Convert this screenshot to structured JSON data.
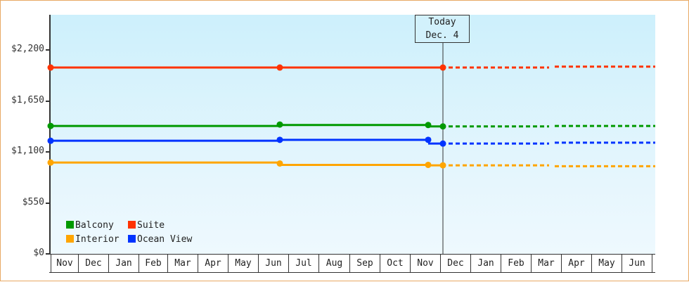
{
  "chart_data": {
    "type": "line",
    "title": "",
    "xlabel": "",
    "ylabel": "",
    "ylim": [
      0,
      2475
    ],
    "y_ticks": [
      "$0",
      "$550",
      "$1,100",
      "$1,650",
      "$2,200"
    ],
    "y_tick_values": [
      0,
      550,
      1100,
      1650,
      2200
    ],
    "categories": [
      "Nov",
      "Dec",
      "Jan",
      "Feb",
      "Mar",
      "Apr",
      "May",
      "Jun",
      "Jul",
      "Aug",
      "Sep",
      "Oct",
      "Nov",
      "Dec",
      "Jan",
      "Feb",
      "Mar",
      "Apr",
      "May",
      "Jun"
    ],
    "grid": false,
    "legend_position": "lower-left inside plot",
    "annotation": {
      "label_line1": "Today",
      "label_line2": "Dec. 4"
    },
    "series": [
      {
        "name": "Suite",
        "color": "#ff3300",
        "historical": [
          {
            "x": "Nov (start)",
            "y": 2010
          },
          {
            "x": "Jun",
            "y": 2010
          },
          {
            "x": "Dec 4",
            "y": 2010
          }
        ],
        "forecast": [
          {
            "x": "Dec 4",
            "y": 2010
          },
          {
            "x": "Mar",
            "y": 2010
          },
          {
            "x": "Jun",
            "y": 2020
          }
        ]
      },
      {
        "name": "Balcony",
        "color": "#009900",
        "historical": [
          {
            "x": "Nov (start)",
            "y": 1380
          },
          {
            "x": "Jun",
            "y": 1395
          },
          {
            "x": "Nov (end)",
            "y": 1390
          },
          {
            "x": "Dec 4",
            "y": 1375
          }
        ],
        "forecast": [
          {
            "x": "Dec 4",
            "y": 1375
          },
          {
            "x": "Mar",
            "y": 1375
          },
          {
            "x": "Jun",
            "y": 1380
          }
        ]
      },
      {
        "name": "Ocean View",
        "color": "#0033ff",
        "historical": [
          {
            "x": "Nov (start)",
            "y": 1220
          },
          {
            "x": "Jun",
            "y": 1230
          },
          {
            "x": "Nov (end)",
            "y": 1230
          },
          {
            "x": "Dec 4",
            "y": 1190
          }
        ],
        "forecast": [
          {
            "x": "Dec 4",
            "y": 1190
          },
          {
            "x": "Mar",
            "y": 1190
          },
          {
            "x": "Jun",
            "y": 1200
          }
        ]
      },
      {
        "name": "Interior",
        "color": "#ffa500",
        "historical": [
          {
            "x": "Nov (start)",
            "y": 985
          },
          {
            "x": "Jun",
            "y": 975
          },
          {
            "x": "Nov (end)",
            "y": 960
          },
          {
            "x": "Dec 4",
            "y": 955
          }
        ],
        "forecast": [
          {
            "x": "Dec 4",
            "y": 955
          },
          {
            "x": "Mar",
            "y": 955
          },
          {
            "x": "Jun",
            "y": 945
          }
        ]
      }
    ]
  },
  "legend": [
    {
      "label": "Balcony",
      "color": "#009900"
    },
    {
      "label": "Suite",
      "color": "#ff3300"
    },
    {
      "label": "Interior",
      "color": "#ffa500"
    },
    {
      "label": "Ocean View",
      "color": "#0033ff"
    }
  ],
  "today_marker": {
    "line1": "Today",
    "line2": "Dec. 4"
  },
  "colors": {
    "border": "#e8a964",
    "axis": "#333333",
    "plot_top": "#cdf0fc",
    "plot_bottom": "#eef9fe"
  }
}
